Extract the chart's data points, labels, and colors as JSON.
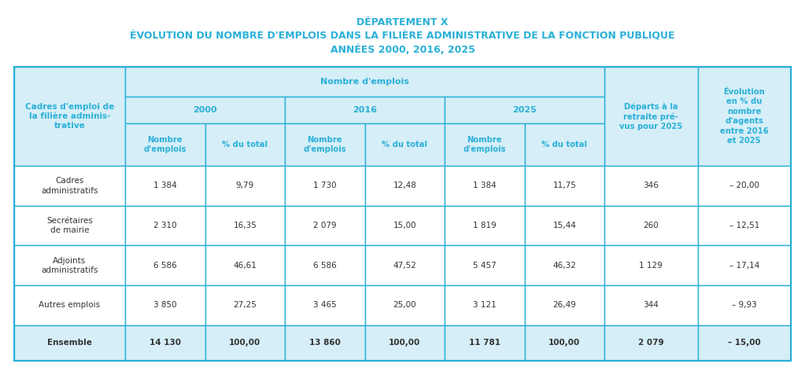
{
  "title1": "DÉPARTEMENT X",
  "title2": "ÉVOLUTION DU NOMBRE D'EMPLOIS DANS LA FILIÈRE ADMINISTRATIVE DE LA FONCTION PUBLIQUE",
  "title3": "ANNÉES 2000, 2016, 2025",
  "title_color": "#2ab0d8",
  "header_bg": "#d6eef7",
  "header_color": "#2ab0d8",
  "border_color": "#2ab0d8",
  "row_bg_normal": "#ffffff",
  "row_bg_last": "#d6eef7",
  "text_color_dark": "#333333",
  "col0_header": "Cadres d'emploi de\nla filière adminis-\ntrative",
  "span_header": "Nombre d'emplois",
  "year_headers": [
    "2000",
    "2016",
    "2025"
  ],
  "sub_headers": [
    "Nombre\nd'emplois",
    "% du total"
  ],
  "col7_header": "Départs à la\nretraite pré-\nvus pour 2025",
  "col8_header": "Évolution\nen % du\nnombre\nd'agents\nentre 2016\net 2025",
  "row_labels": [
    "Cadres\nadministratifs",
    "Secrétaires\nde mairie",
    "Adjoints\nadministratifs",
    "Autres emplois",
    "Ensemble"
  ],
  "data": [
    [
      "1 384",
      "9,79",
      "1 730",
      "12,48",
      "1 384",
      "11,75",
      "346",
      "– 20,00"
    ],
    [
      "2 310",
      "16,35",
      "2 079",
      "15,00",
      "1 819",
      "15,44",
      "260",
      "– 12,51"
    ],
    [
      "6 586",
      "46,61",
      "6 586",
      "47,52",
      "5 457",
      "46,32",
      "1 129",
      "– 17,14"
    ],
    [
      "3 850",
      "27,25",
      "3 465",
      "25,00",
      "3 121",
      "26,49",
      "344",
      "– 9,93"
    ],
    [
      "14 130",
      "100,00",
      "13 860",
      "100,00",
      "11 781",
      "100,00",
      "2 079",
      "– 15,00"
    ]
  ]
}
